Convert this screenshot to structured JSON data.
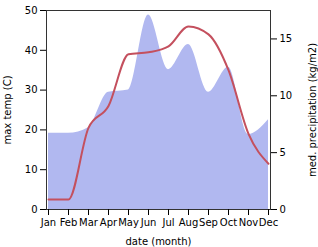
{
  "chart_data": {
    "type": "line",
    "x_label": "date (month)",
    "y_label": "max temp (C)",
    "y2_label": "med. precipitation (kg/m2)",
    "categories": [
      "Jan",
      "Feb",
      "Mar",
      "Apr",
      "May",
      "Jun",
      "Jul",
      "Aug",
      "Sep",
      "Oct",
      "Nov",
      "Dec"
    ],
    "series": [
      {
        "type": "area",
        "axis": "y2",
        "color": "#b1b8f0",
        "values": [
          6.7,
          6.7,
          7.2,
          10.3,
          10.5,
          17.1,
          12.3,
          14.5,
          10.3,
          12.5,
          6.6,
          7.9
        ]
      },
      {
        "type": "line",
        "color": "#c4505e",
        "values": [
          2.5,
          2.5,
          20.5,
          26,
          39,
          39.5,
          41,
          46,
          44,
          35,
          19,
          11.5
        ]
      }
    ],
    "ylim": [
      0,
      50
    ],
    "yticks": [
      0,
      10,
      20,
      30,
      40,
      50
    ],
    "y2lim": [
      0,
      17.5
    ],
    "y2ticks": [
      0,
      5,
      10,
      15
    ],
    "grid": false
  }
}
